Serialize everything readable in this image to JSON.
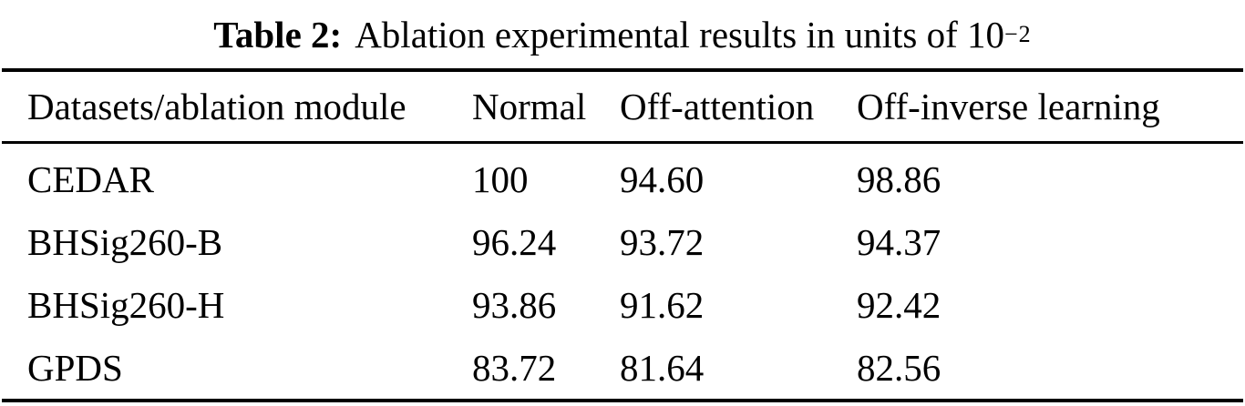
{
  "caption": {
    "label": "Table 2:",
    "text": "Ablation experimental results in units of ",
    "base": "10",
    "exponent": "−2"
  },
  "table": {
    "headers": [
      "Datasets/ablation module",
      "Normal",
      "Off-attention",
      "Off-inverse learning"
    ],
    "rows": [
      {
        "dataset": "CEDAR",
        "values": [
          "100",
          "94.60",
          "98.86"
        ]
      },
      {
        "dataset": "BHSig260-B",
        "values": [
          "96.24",
          "93.72",
          "94.37"
        ]
      },
      {
        "dataset": "BHSig260-H",
        "values": [
          "93.86",
          "91.62",
          "92.42"
        ]
      },
      {
        "dataset": "GPDS",
        "values": [
          "83.72",
          "81.64",
          "82.56"
        ]
      }
    ]
  },
  "colors": {
    "text": "#000000",
    "background": "#ffffff",
    "rule": "#000000"
  }
}
